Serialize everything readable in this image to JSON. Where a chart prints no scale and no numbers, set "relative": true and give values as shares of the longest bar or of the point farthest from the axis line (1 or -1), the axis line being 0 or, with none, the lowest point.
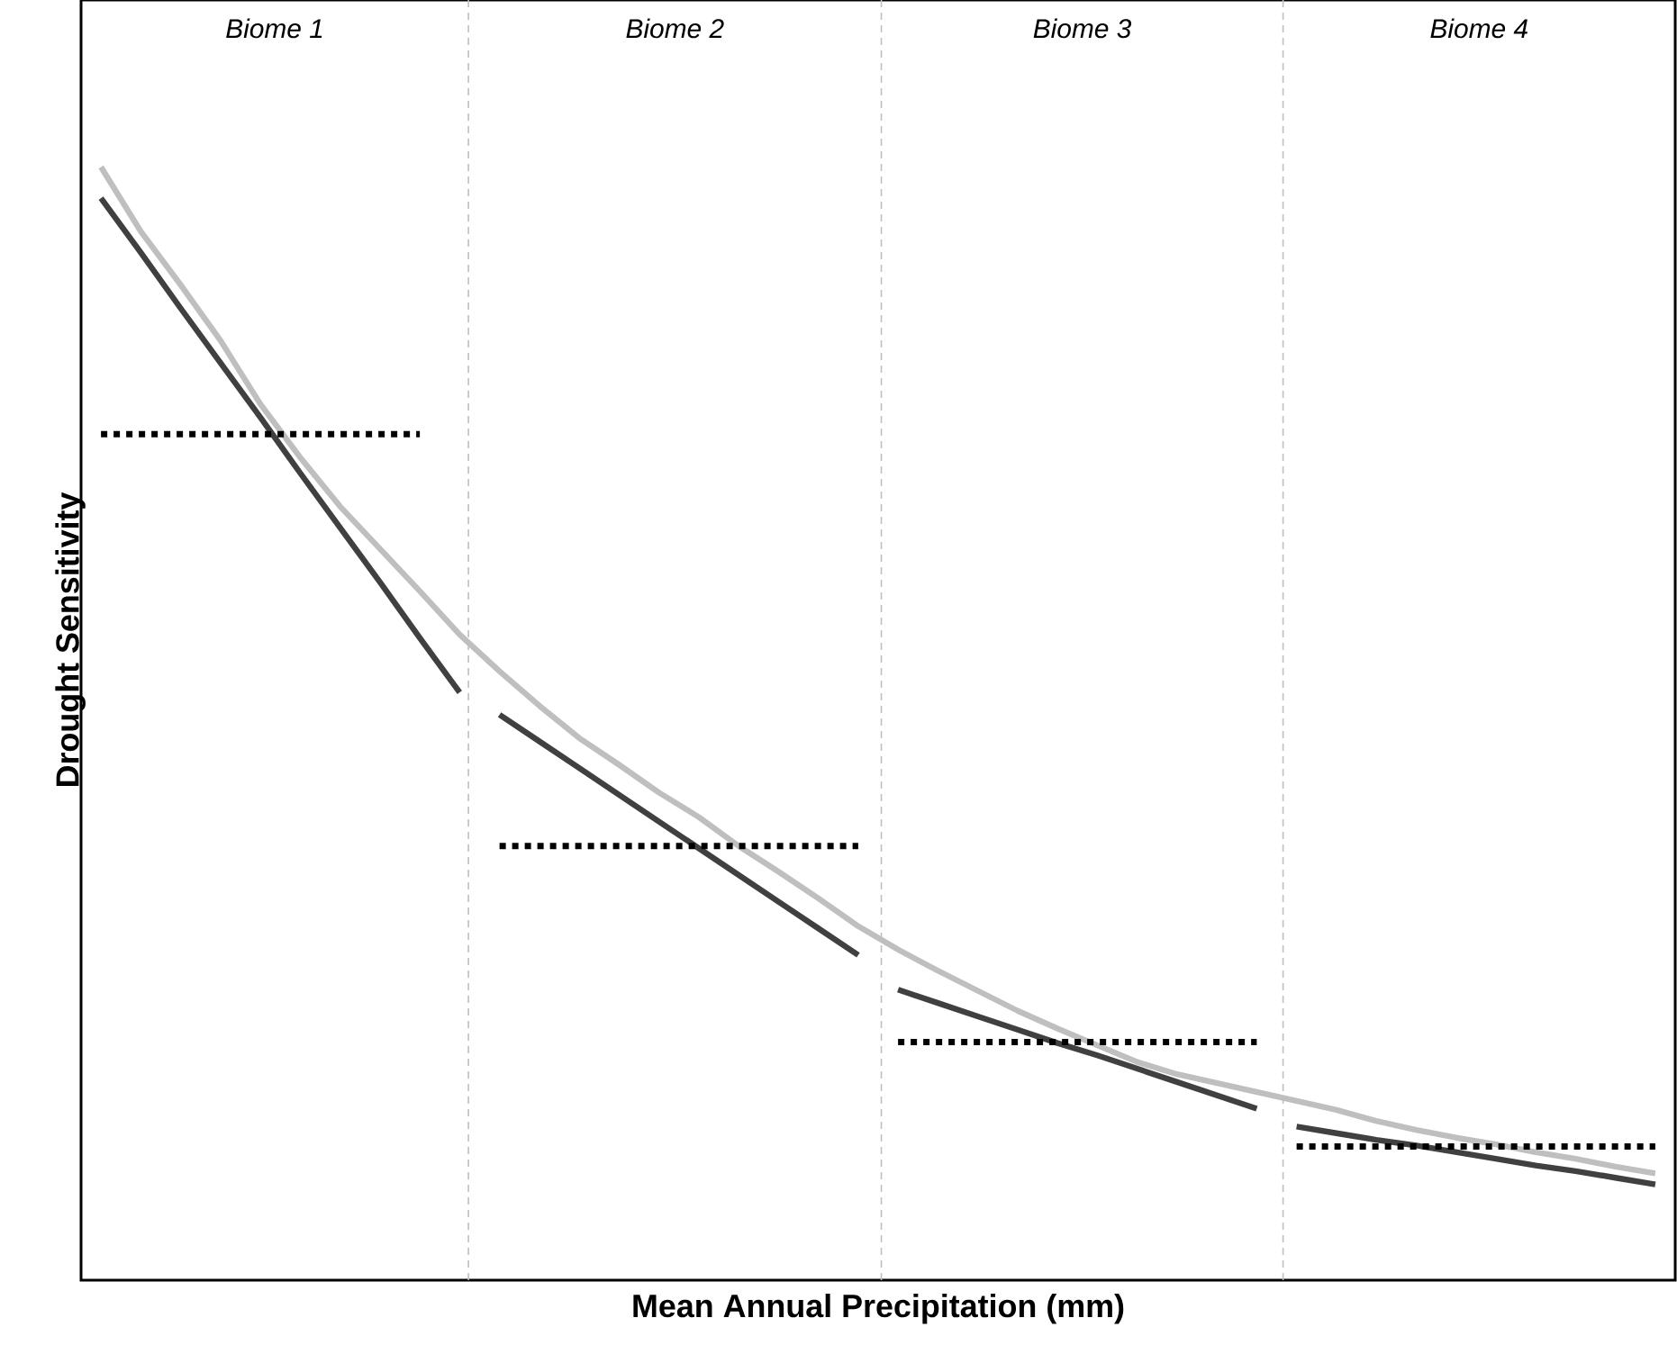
{
  "chart_data": {
    "type": "line",
    "relative": true,
    "tick_labels": false,
    "xlabel": "Mean Annual Precipitation (mm)",
    "ylabel": "Drought Sensitivity",
    "categories": [
      null,
      null,
      null,
      null,
      null,
      null,
      null,
      null,
      null,
      null,
      null,
      null,
      null,
      null,
      null,
      null,
      null,
      null,
      null,
      null,
      null,
      null,
      null,
      null,
      null,
      null,
      null,
      null,
      null,
      null,
      null,
      null,
      null,
      null,
      null,
      null,
      null,
      null,
      null,
      null
    ],
    "annotations": [
      "Biome 1",
      "Biome 2",
      "Biome 3",
      "Biome 4"
    ],
    "series": [
      {
        "color": "#bfbfbf",
        "line_style": "solid",
        "values": [
          1.0,
          0.942,
          0.894,
          0.844,
          0.787,
          0.739,
          0.695,
          0.657,
          0.619,
          0.58,
          0.547,
          0.516,
          0.487,
          0.463,
          0.438,
          0.416,
          0.39,
          0.367,
          0.343,
          0.318,
          0.297,
          0.278,
          0.26,
          0.242,
          0.226,
          0.211,
          0.196,
          0.185,
          0.177,
          0.169,
          0.161,
          0.153,
          0.143,
          0.135,
          0.128,
          0.122,
          0.115,
          0.109,
          0.102,
          0.096
        ]
      },
      {
        "color": "#404040",
        "line_style": "solid",
        "values": [
          0.972,
          0.923,
          0.873,
          0.824,
          0.775,
          0.725,
          0.676,
          0.627,
          0.577,
          0.528,
          null,
          null,
          null,
          null,
          null,
          null,
          null,
          null,
          null,
          null,
          null,
          null,
          null,
          null,
          null,
          null,
          null,
          null,
          null,
          null,
          null,
          null,
          null,
          null,
          null,
          null,
          null,
          null,
          null,
          null
        ]
      },
      {
        "color": "#404040",
        "line_style": "solid",
        "values": [
          null,
          null,
          null,
          null,
          null,
          null,
          null,
          null,
          null,
          null,
          0.508,
          0.484,
          0.46,
          0.436,
          0.412,
          0.388,
          0.364,
          0.34,
          0.316,
          0.292,
          null,
          null,
          null,
          null,
          null,
          null,
          null,
          null,
          null,
          null,
          null,
          null,
          null,
          null,
          null,
          null,
          null,
          null,
          null,
          null
        ]
      },
      {
        "color": "#404040",
        "line_style": "solid",
        "values": [
          null,
          null,
          null,
          null,
          null,
          null,
          null,
          null,
          null,
          null,
          null,
          null,
          null,
          null,
          null,
          null,
          null,
          null,
          null,
          null,
          0.261,
          0.249,
          0.237,
          0.225,
          0.213,
          0.202,
          0.19,
          0.178,
          0.166,
          0.154,
          null,
          null,
          null,
          null,
          null,
          null,
          null,
          null,
          null,
          null
        ]
      },
      {
        "color": "#404040",
        "line_style": "solid",
        "values": [
          null,
          null,
          null,
          null,
          null,
          null,
          null,
          null,
          null,
          null,
          null,
          null,
          null,
          null,
          null,
          null,
          null,
          null,
          null,
          null,
          null,
          null,
          null,
          null,
          null,
          null,
          null,
          null,
          null,
          null,
          0.138,
          0.132,
          0.126,
          0.121,
          0.115,
          0.109,
          0.103,
          0.098,
          0.092,
          0.086
        ]
      },
      {
        "color": "#000000",
        "line_style": "dotted",
        "values": [
          0.76,
          0.76,
          0.76,
          0.76,
          0.76,
          0.76,
          0.76,
          0.76,
          0.76,
          null,
          null,
          null,
          null,
          null,
          null,
          null,
          null,
          null,
          null,
          null,
          null,
          null,
          null,
          null,
          null,
          null,
          null,
          null,
          null,
          null,
          null,
          null,
          null,
          null,
          null,
          null,
          null,
          null,
          null,
          null
        ]
      },
      {
        "color": "#000000",
        "line_style": "dotted",
        "values": [
          null,
          null,
          null,
          null,
          null,
          null,
          null,
          null,
          null,
          null,
          0.39,
          0.39,
          0.39,
          0.39,
          0.39,
          0.39,
          0.39,
          0.39,
          0.39,
          0.39,
          null,
          null,
          null,
          null,
          null,
          null,
          null,
          null,
          null,
          null,
          null,
          null,
          null,
          null,
          null,
          null,
          null,
          null,
          null,
          null
        ]
      },
      {
        "color": "#000000",
        "line_style": "dotted",
        "values": [
          null,
          null,
          null,
          null,
          null,
          null,
          null,
          null,
          null,
          null,
          null,
          null,
          null,
          null,
          null,
          null,
          null,
          null,
          null,
          null,
          0.214,
          0.214,
          0.214,
          0.214,
          0.214,
          0.214,
          0.214,
          0.214,
          0.214,
          0.214,
          null,
          null,
          null,
          null,
          null,
          null,
          null,
          null,
          null,
          null
        ]
      },
      {
        "color": "#000000",
        "line_style": "dotted",
        "values": [
          null,
          null,
          null,
          null,
          null,
          null,
          null,
          null,
          null,
          null,
          null,
          null,
          null,
          null,
          null,
          null,
          null,
          null,
          null,
          null,
          null,
          null,
          null,
          null,
          null,
          null,
          null,
          null,
          null,
          null,
          0.12,
          0.12,
          0.12,
          0.12,
          0.12,
          0.12,
          0.12,
          0.12,
          0.12,
          0.12
        ]
      }
    ]
  }
}
